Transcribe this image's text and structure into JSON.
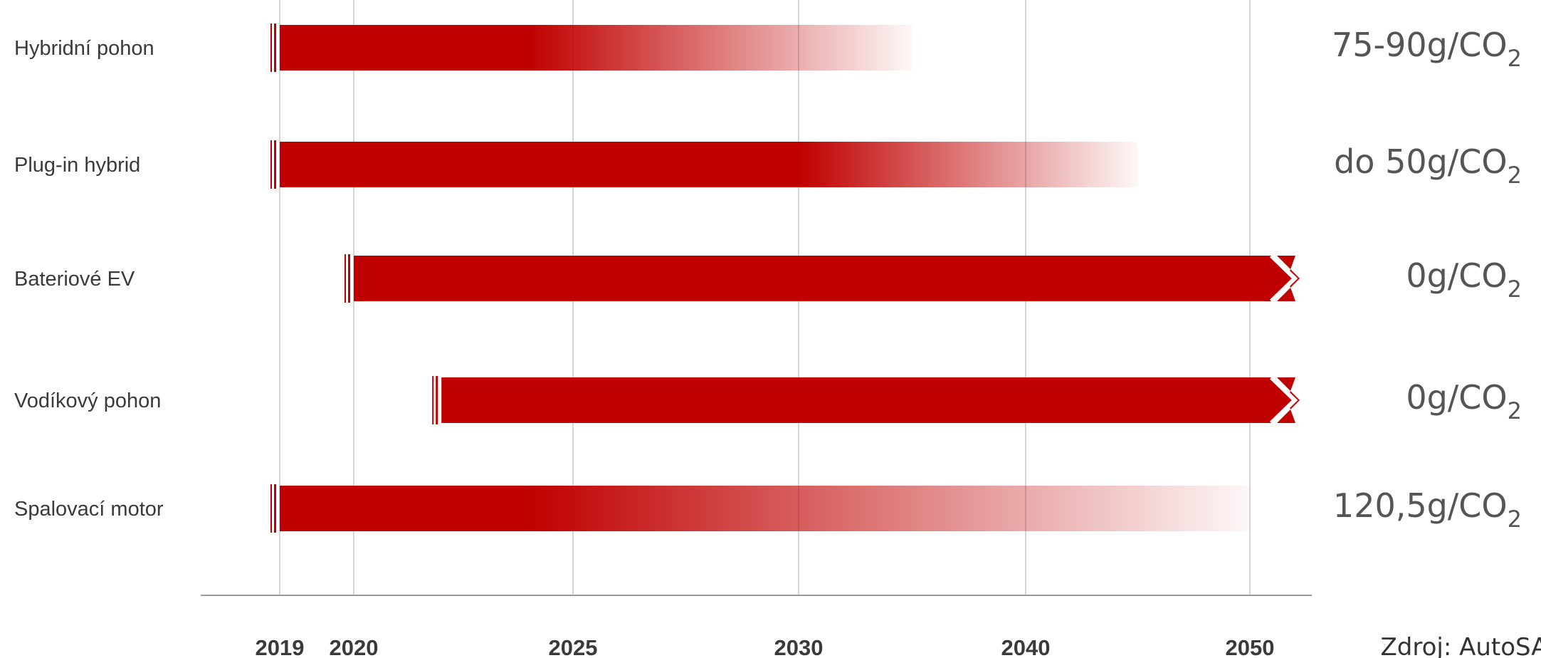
{
  "chart_data": {
    "type": "bar",
    "subtype": "timeline",
    "x_ticks": [
      2019,
      2020,
      2025,
      2030,
      2040,
      2050
    ],
    "bar_color": "#c00000",
    "series": [
      {
        "label": "Hybridní pohon",
        "start": 2019,
        "solid_until": 2024,
        "end": 2035,
        "fade": true,
        "arrow": false,
        "emission": "75-90g/CO",
        "emission_sub": "2"
      },
      {
        "label": "Plug-in hybrid",
        "start": 2019,
        "solid_until": 2030,
        "end": 2045,
        "fade": true,
        "arrow": false,
        "emission": "do 50g/CO",
        "emission_sub": "2"
      },
      {
        "label": "Bateriové EV",
        "start": 2020,
        "solid_until": 2050,
        "end": 2051.5,
        "fade": false,
        "arrow": true,
        "emission": "0g/CO",
        "emission_sub": "2"
      },
      {
        "label": "Vodíkový pohon",
        "start": 2022,
        "solid_until": 2050,
        "end": 2051.5,
        "fade": false,
        "arrow": true,
        "emission": "0g/CO",
        "emission_sub": "2"
      },
      {
        "label": "Spalovací motor",
        "start": 2019,
        "solid_until": 2024,
        "end": 2050,
        "fade": true,
        "arrow": false,
        "emission": "120,5g/CO",
        "emission_sub": "2"
      }
    ],
    "source": "Zdroj: AutoSAP"
  }
}
